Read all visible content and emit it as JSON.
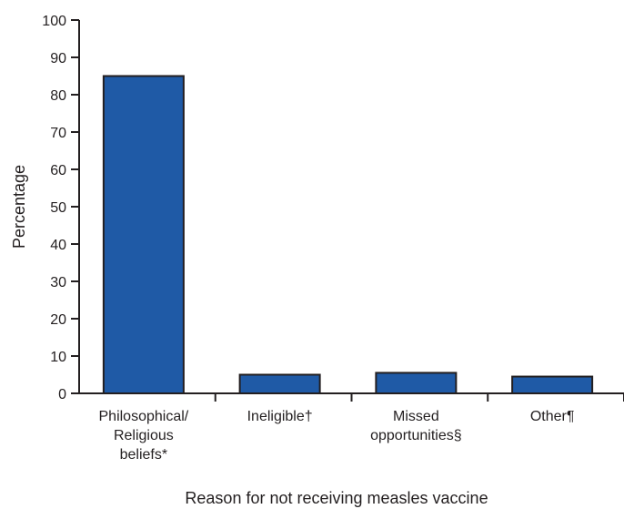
{
  "chart_data": {
    "type": "bar",
    "categories": [
      [
        "Philosophical/",
        "Religious",
        "beliefs*"
      ],
      [
        "Ineligible†"
      ],
      [
        "Missed",
        "opportunities§"
      ],
      [
        "Other¶"
      ]
    ],
    "values": [
      85,
      5,
      5.5,
      4.5
    ],
    "title": "",
    "xlabel": "Reason for not receiving measles vaccine",
    "ylabel": "Percentage",
    "ylim": [
      0,
      100
    ],
    "yticks": [
      0,
      10,
      20,
      30,
      40,
      50,
      60,
      70,
      80,
      90,
      100
    ],
    "grid": false,
    "legend": "none",
    "colors": {
      "bar_fill": "#1f5aa6",
      "bar_stroke": "#231f20",
      "axis": "#231f20"
    }
  }
}
